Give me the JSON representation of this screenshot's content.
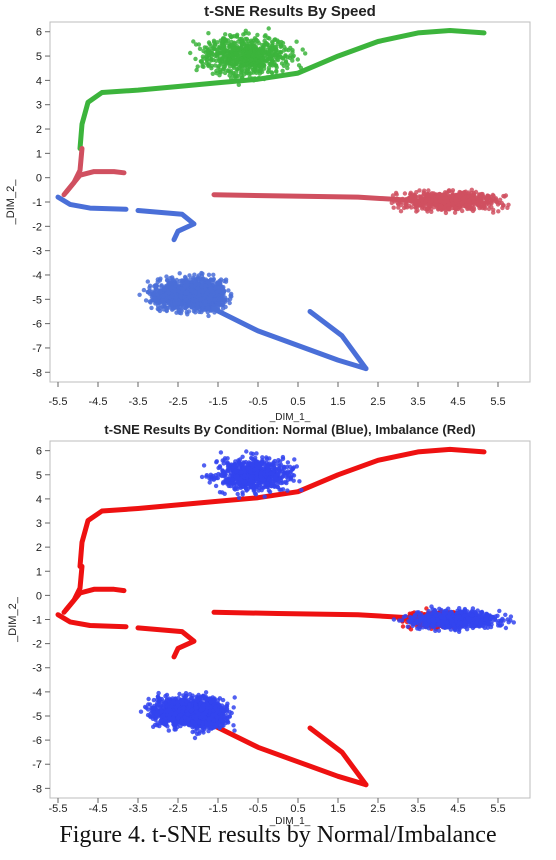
{
  "figure": {
    "caption": "Figure 4. t-SNE results by Normal/Imbalance"
  },
  "chart_data": [
    {
      "type": "scatter",
      "title": "t-SNE Results By Speed",
      "xlabel": "_DIM_1_",
      "ylabel": "_DIM_2_",
      "xlim": [
        -5.7,
        6.3
      ],
      "ylim": [
        -8.4,
        6.4
      ],
      "xticks": [
        -5.5,
        -4.5,
        -3.5,
        -2.5,
        -1.5,
        -0.5,
        0.5,
        1.5,
        2.5,
        3.5,
        4.5,
        5.5
      ],
      "yticks": [
        -8,
        -7,
        -6,
        -5,
        -4,
        -3,
        -2,
        -1,
        0,
        1,
        2,
        3,
        4,
        5,
        6
      ],
      "grid": false,
      "legend": "none",
      "series": [
        {
          "color": "#3cb43c",
          "paths": [
            [
              [
                -4.95,
                1.2
              ],
              [
                -4.9,
                2.2
              ],
              [
                -4.75,
                3.1
              ],
              [
                -4.4,
                3.5
              ],
              [
                -3.5,
                3.6
              ],
              [
                -2.5,
                3.75
              ],
              [
                -1.5,
                3.9
              ],
              [
                -0.5,
                4.05
              ],
              [
                0.5,
                4.3
              ],
              [
                1.5,
                5.0
              ],
              [
                2.5,
                5.6
              ],
              [
                3.5,
                5.95
              ],
              [
                4.3,
                6.05
              ],
              [
                5.15,
                5.95
              ]
            ]
          ],
          "clusters": [
            {
              "center": [
                -0.8,
                5.0
              ],
              "spread": [
                0.7,
                0.55
              ]
            }
          ]
        },
        {
          "color": "#d05060",
          "paths": [
            [
              [
                -5.35,
                -0.7
              ],
              [
                -5.1,
                -0.2
              ],
              [
                -4.95,
                0.3
              ],
              [
                -4.9,
                1.2
              ]
            ],
            [
              [
                -5.3,
                -0.6
              ],
              [
                -4.95,
                0.1
              ],
              [
                -4.6,
                0.25
              ],
              [
                -4.1,
                0.25
              ],
              [
                -3.85,
                0.2
              ]
            ],
            [
              [
                -1.6,
                -0.7
              ],
              [
                0.0,
                -0.75
              ],
              [
                2.0,
                -0.8
              ],
              [
                3.5,
                -0.95
              ]
            ]
          ],
          "clusters": [
            {
              "center": [
                4.3,
                -0.95
              ],
              "spread": [
                0.85,
                0.25
              ]
            }
          ]
        },
        {
          "color": "#4a6fd8",
          "paths": [
            [
              [
                -5.5,
                -0.8
              ],
              [
                -5.2,
                -1.1
              ],
              [
                -4.7,
                -1.25
              ],
              [
                -3.8,
                -1.3
              ]
            ],
            [
              [
                -3.5,
                -1.35
              ],
              [
                -2.4,
                -1.5
              ],
              [
                -2.1,
                -1.9
              ],
              [
                -2.5,
                -2.2
              ],
              [
                -2.6,
                -2.55
              ]
            ],
            [
              [
                -1.6,
                -5.4
              ],
              [
                -0.5,
                -6.3
              ],
              [
                0.5,
                -6.9
              ],
              [
                1.5,
                -7.5
              ],
              [
                2.2,
                -7.85
              ]
            ],
            [
              [
                0.8,
                -5.5
              ],
              [
                1.6,
                -6.5
              ],
              [
                2.2,
                -7.85
              ]
            ]
          ],
          "clusters": [
            {
              "center": [
                -2.5,
                -4.8
              ],
              "spread": [
                0.45,
                0.4
              ]
            },
            {
              "center": [
                -1.8,
                -4.8
              ],
              "spread": [
                0.35,
                0.45
              ]
            }
          ]
        }
      ]
    },
    {
      "type": "scatter",
      "title": "t-SNE Results By Condition: Normal (Blue), Imbalance (Red)",
      "xlabel": "_DIM_1_",
      "ylabel": "_DIM_2_",
      "xlim": [
        -5.7,
        6.3
      ],
      "ylim": [
        -8.4,
        6.4
      ],
      "xticks": [
        -5.5,
        -4.5,
        -3.5,
        -2.5,
        -1.5,
        -0.5,
        0.5,
        1.5,
        2.5,
        3.5,
        4.5,
        5.5
      ],
      "yticks": [
        -8,
        -7,
        -6,
        -5,
        -4,
        -3,
        -2,
        -1,
        0,
        1,
        2,
        3,
        4,
        5,
        6
      ],
      "grid": false,
      "legend": "none",
      "series": [
        {
          "color": "#ee1111",
          "paths": [
            [
              [
                -4.95,
                1.2
              ],
              [
                -4.9,
                2.2
              ],
              [
                -4.75,
                3.1
              ],
              [
                -4.4,
                3.5
              ],
              [
                -3.5,
                3.6
              ],
              [
                -2.5,
                3.75
              ],
              [
                -1.5,
                3.9
              ],
              [
                -0.5,
                4.05
              ],
              [
                0.5,
                4.3
              ],
              [
                1.5,
                5.0
              ],
              [
                2.5,
                5.6
              ],
              [
                3.5,
                5.95
              ],
              [
                4.3,
                6.05
              ],
              [
                5.15,
                5.95
              ]
            ],
            [
              [
                -5.35,
                -0.7
              ],
              [
                -5.1,
                -0.2
              ],
              [
                -4.95,
                0.3
              ],
              [
                -4.9,
                1.2
              ]
            ],
            [
              [
                -5.3,
                -0.6
              ],
              [
                -4.95,
                0.1
              ],
              [
                -4.6,
                0.25
              ],
              [
                -4.1,
                0.25
              ],
              [
                -3.85,
                0.2
              ]
            ],
            [
              [
                -1.6,
                -0.7
              ],
              [
                0.0,
                -0.75
              ],
              [
                2.0,
                -0.8
              ],
              [
                3.5,
                -0.95
              ]
            ],
            [
              [
                -5.5,
                -0.8
              ],
              [
                -5.2,
                -1.1
              ],
              [
                -4.7,
                -1.25
              ],
              [
                -3.8,
                -1.3
              ]
            ],
            [
              [
                -3.5,
                -1.35
              ],
              [
                -2.4,
                -1.5
              ],
              [
                -2.1,
                -1.9
              ],
              [
                -2.5,
                -2.2
              ],
              [
                -2.6,
                -2.55
              ]
            ],
            [
              [
                -1.6,
                -5.4
              ],
              [
                -0.5,
                -6.3
              ],
              [
                0.5,
                -6.9
              ],
              [
                1.5,
                -7.5
              ],
              [
                2.2,
                -7.85
              ]
            ],
            [
              [
                0.8,
                -5.5
              ],
              [
                1.6,
                -6.5
              ],
              [
                2.2,
                -7.85
              ]
            ]
          ],
          "clusters": [
            {
              "center": [
                4.0,
                -1.0
              ],
              "spread": [
                0.5,
                0.2
              ]
            }
          ]
        },
        {
          "color": "#3344ee",
          "paths": [],
          "clusters": [
            {
              "center": [
                -0.6,
                5.0
              ],
              "spread": [
                0.6,
                0.45
              ]
            },
            {
              "center": [
                4.4,
                -1.0
              ],
              "spread": [
                0.75,
                0.25
              ]
            },
            {
              "center": [
                -2.5,
                -4.8
              ],
              "spread": [
                0.45,
                0.4
              ]
            },
            {
              "center": [
                -1.8,
                -4.9
              ],
              "spread": [
                0.35,
                0.45
              ]
            }
          ]
        }
      ]
    }
  ]
}
